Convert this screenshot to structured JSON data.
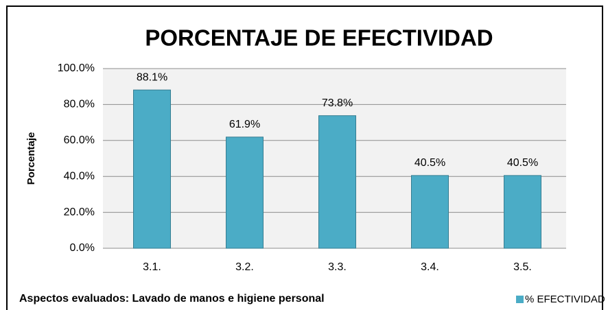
{
  "chart_data": {
    "type": "bar",
    "title": "PORCENTAJE DE EFECTIVIDAD",
    "y_label": "Porcentaje",
    "x_label": "Aspectos evaluados: Lavado de manos e higiene personal",
    "categories": [
      "3.1.",
      "3.2.",
      "3.3.",
      "3.4.",
      "3.5."
    ],
    "series": [
      {
        "name": "% EFECTIVIDAD",
        "color": "#4bacc6",
        "values": [
          88.1,
          61.9,
          73.8,
          40.5,
          40.5
        ],
        "value_labels": [
          "88.1%",
          "61.9%",
          "73.8%",
          "40.5%",
          "40.5%"
        ]
      }
    ],
    "ylim": [
      0,
      100
    ],
    "yticks": [
      {
        "value": 0,
        "label": "0.0%"
      },
      {
        "value": 20,
        "label": "20.0%"
      },
      {
        "value": 40,
        "label": "40.0%"
      },
      {
        "value": 60,
        "label": "60.0%"
      },
      {
        "value": 80,
        "label": "80.0%"
      },
      {
        "value": 100,
        "label": "100.0%"
      }
    ],
    "grid": true,
    "legend": "bottom-right"
  }
}
